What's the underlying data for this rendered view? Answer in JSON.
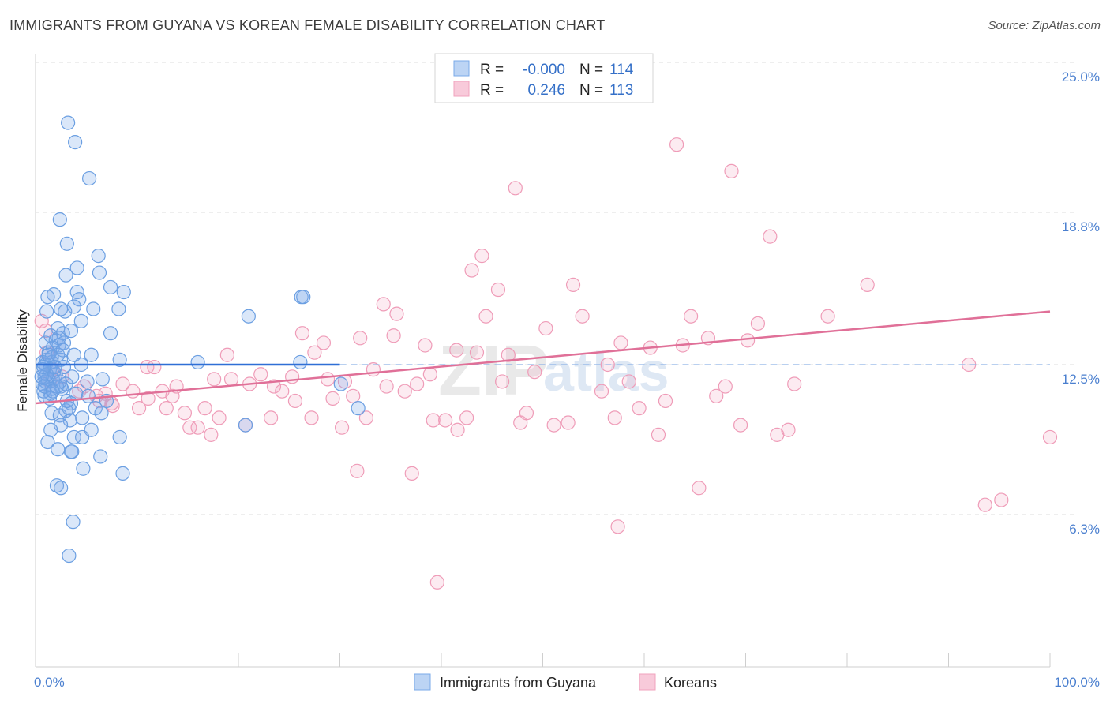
{
  "title": "IMMIGRANTS FROM GUYANA VS KOREAN FEMALE DISABILITY CORRELATION CHART",
  "source": "Source: ZipAtlas.com",
  "watermark": {
    "zip": "ZIP",
    "atlas": "atlas"
  },
  "colors": {
    "blue": "#7aaae8",
    "blue_line": "#2f6fd6",
    "pink": "#f1a3bd",
    "pink_line": "#e07098"
  },
  "legend": {
    "rows": [
      {
        "r_label": "R =",
        "r_value": "-0.000",
        "n_label": "N =",
        "n_value": "114"
      },
      {
        "r_label": "R =",
        "r_value": "0.246",
        "n_label": "N =",
        "n_value": "113"
      }
    ]
  },
  "bottom_legend": {
    "series1": "Immigrants from Guyana",
    "series2": "Koreans"
  },
  "chart_data": {
    "type": "scatter",
    "ylabel": "Female Disability",
    "xlabel": "",
    "xlim": [
      0,
      100
    ],
    "ylim": [
      0,
      25
    ],
    "y_ticks": [
      {
        "value": 6.3,
        "label": "6.3%"
      },
      {
        "value": 12.5,
        "label": "12.5%"
      },
      {
        "value": 18.8,
        "label": "18.8%"
      },
      {
        "value": 25.0,
        "label": "25.0%"
      }
    ],
    "x_tick_labels": {
      "min": "0.0%",
      "max": "100.0%"
    },
    "grid": true,
    "series": [
      {
        "name": "Immigrants from Guyana",
        "r": -0.0,
        "n": 114,
        "trend": {
          "x": [
            0,
            30
          ],
          "y": [
            12.5,
            12.5
          ],
          "dashed_extension_to": 100
        },
        "points": [
          [
            3.2,
            22.5
          ],
          [
            3.9,
            21.7
          ],
          [
            5.3,
            20.2
          ],
          [
            2.4,
            18.5
          ],
          [
            3.1,
            17.5
          ],
          [
            6.2,
            17.0
          ],
          [
            4.1,
            16.5
          ],
          [
            3.0,
            16.2
          ],
          [
            6.3,
            16.3
          ],
          [
            7.4,
            15.7
          ],
          [
            8.7,
            15.5
          ],
          [
            1.8,
            15.4
          ],
          [
            1.2,
            15.3
          ],
          [
            4.1,
            15.5
          ],
          [
            4.3,
            15.2
          ],
          [
            21.0,
            14.5
          ],
          [
            3.8,
            14.9
          ],
          [
            1.1,
            14.7
          ],
          [
            2.9,
            14.7
          ],
          [
            2.5,
            14.8
          ],
          [
            5.7,
            14.8
          ],
          [
            8.2,
            14.8
          ],
          [
            4.5,
            14.3
          ],
          [
            2.2,
            14.0
          ],
          [
            7.4,
            13.8
          ],
          [
            3.5,
            13.9
          ],
          [
            1.0,
            13.4
          ],
          [
            2.7,
            13.8
          ],
          [
            1.5,
            13.7
          ],
          [
            2.3,
            13.6
          ],
          [
            2.0,
            13.5
          ],
          [
            2.3,
            13.3
          ],
          [
            2.8,
            13.4
          ],
          [
            1.7,
            13.2
          ],
          [
            1.3,
            13.0
          ],
          [
            3.8,
            12.9
          ],
          [
            5.5,
            12.9
          ],
          [
            1.1,
            12.7
          ],
          [
            2.5,
            12.7
          ],
          [
            1.6,
            12.8
          ],
          [
            0.7,
            12.6
          ],
          [
            1.6,
            12.6
          ],
          [
            1.0,
            12.5
          ],
          [
            4.5,
            12.5
          ],
          [
            8.3,
            12.7
          ],
          [
            16.0,
            12.6
          ],
          [
            0.7,
            12.3
          ],
          [
            1.4,
            12.3
          ],
          [
            1.8,
            12.2
          ],
          [
            2.0,
            12.1
          ],
          [
            0.9,
            12.0
          ],
          [
            1.2,
            11.9
          ],
          [
            1.7,
            11.9
          ],
          [
            6.6,
            11.9
          ],
          [
            1.0,
            11.8
          ],
          [
            0.7,
            11.7
          ],
          [
            2.5,
            11.6
          ],
          [
            3.0,
            11.7
          ],
          [
            5.1,
            11.8
          ],
          [
            1.6,
            11.5
          ],
          [
            2.6,
            11.5
          ],
          [
            1.5,
            11.3
          ],
          [
            0.9,
            11.2
          ],
          [
            4.0,
            11.3
          ],
          [
            5.2,
            11.2
          ],
          [
            7.0,
            11.0
          ],
          [
            3.5,
            10.9
          ],
          [
            5.9,
            10.7
          ],
          [
            3.0,
            10.6
          ],
          [
            1.6,
            10.5
          ],
          [
            2.4,
            10.4
          ],
          [
            3.3,
            10.7
          ],
          [
            6.5,
            10.5
          ],
          [
            4.6,
            10.3
          ],
          [
            3.4,
            10.2
          ],
          [
            2.5,
            10.0
          ],
          [
            5.5,
            9.8
          ],
          [
            1.5,
            9.8
          ],
          [
            3.8,
            9.5
          ],
          [
            4.6,
            9.5
          ],
          [
            8.3,
            9.5
          ],
          [
            1.2,
            9.3
          ],
          [
            2.2,
            9.0
          ],
          [
            3.5,
            8.9
          ],
          [
            3.6,
            8.9
          ],
          [
            6.4,
            8.7
          ],
          [
            4.7,
            8.2
          ],
          [
            8.6,
            8.0
          ],
          [
            2.1,
            7.5
          ],
          [
            2.5,
            7.4
          ],
          [
            3.7,
            6.0
          ],
          [
            3.3,
            4.6
          ],
          [
            20.7,
            10.0
          ],
          [
            26.1,
            12.6
          ],
          [
            30.1,
            11.7
          ],
          [
            26.2,
            15.3
          ],
          [
            26.4,
            15.3
          ],
          [
            31.8,
            10.7
          ],
          [
            1.1,
            12.1
          ],
          [
            0.8,
            11.4
          ],
          [
            1.3,
            12.9
          ],
          [
            2.1,
            11.6
          ],
          [
            2.8,
            12.4
          ],
          [
            0.6,
            12.0
          ],
          [
            1.9,
            12.4
          ],
          [
            1.4,
            11.1
          ],
          [
            3.6,
            12.0
          ],
          [
            2.2,
            12.9
          ],
          [
            0.9,
            11.6
          ],
          [
            2.4,
            11.8
          ],
          [
            1.7,
            11.4
          ],
          [
            0.8,
            12.4
          ],
          [
            3.1,
            11.0
          ],
          [
            2.7,
            13.1
          ]
        ]
      },
      {
        "name": "Koreans",
        "r": 0.246,
        "n": 113,
        "trend": {
          "x": [
            0,
            100
          ],
          "y": [
            10.9,
            14.7
          ]
        },
        "points": [
          [
            0.6,
            14.3
          ],
          [
            1.0,
            13.9
          ],
          [
            1.1,
            13.0
          ],
          [
            1.7,
            12.3
          ],
          [
            2.6,
            12.0
          ],
          [
            1.4,
            11.8
          ],
          [
            4.8,
            11.6
          ],
          [
            4.3,
            11.4
          ],
          [
            6.0,
            11.2
          ],
          [
            6.3,
            11.0
          ],
          [
            7.5,
            10.9
          ],
          [
            8.6,
            11.7
          ],
          [
            6.9,
            11.3
          ],
          [
            7.6,
            10.8
          ],
          [
            9.6,
            11.4
          ],
          [
            10.2,
            10.7
          ],
          [
            11.1,
            11.1
          ],
          [
            11.7,
            12.4
          ],
          [
            11.0,
            12.4
          ],
          [
            12.5,
            11.4
          ],
          [
            12.9,
            10.7
          ],
          [
            13.9,
            11.6
          ],
          [
            13.5,
            11.2
          ],
          [
            14.7,
            10.5
          ],
          [
            15.2,
            9.9
          ],
          [
            16.0,
            9.9
          ],
          [
            16.7,
            10.7
          ],
          [
            17.3,
            9.6
          ],
          [
            17.6,
            11.9
          ],
          [
            18.1,
            10.3
          ],
          [
            18.9,
            12.9
          ],
          [
            19.3,
            11.9
          ],
          [
            20.7,
            10.0
          ],
          [
            21.1,
            11.7
          ],
          [
            22.2,
            12.1
          ],
          [
            23.2,
            10.3
          ],
          [
            23.5,
            11.6
          ],
          [
            24.3,
            11.4
          ],
          [
            25.3,
            12.0
          ],
          [
            25.6,
            11.0
          ],
          [
            26.3,
            13.8
          ],
          [
            27.2,
            10.3
          ],
          [
            27.5,
            13.0
          ],
          [
            28.4,
            13.4
          ],
          [
            28.8,
            11.9
          ],
          [
            29.3,
            11.1
          ],
          [
            30.2,
            9.9
          ],
          [
            30.5,
            11.8
          ],
          [
            31.3,
            11.2
          ],
          [
            31.7,
            8.1
          ],
          [
            32.0,
            13.6
          ],
          [
            32.6,
            10.3
          ],
          [
            33.3,
            12.3
          ],
          [
            34.3,
            15.0
          ],
          [
            34.6,
            11.6
          ],
          [
            35.3,
            13.7
          ],
          [
            35.6,
            14.6
          ],
          [
            36.4,
            11.4
          ],
          [
            37.1,
            8.0
          ],
          [
            37.6,
            11.7
          ],
          [
            38.4,
            13.3
          ],
          [
            38.9,
            12.1
          ],
          [
            39.2,
            10.2
          ],
          [
            39.6,
            3.5
          ],
          [
            40.4,
            10.2
          ],
          [
            41.5,
            13.1
          ],
          [
            41.6,
            9.8
          ],
          [
            42.5,
            10.3
          ],
          [
            43.0,
            16.4
          ],
          [
            43.5,
            13.0
          ],
          [
            44.0,
            17.0
          ],
          [
            44.4,
            14.5
          ],
          [
            45.6,
            15.6
          ],
          [
            46.0,
            11.8
          ],
          [
            46.6,
            12.9
          ],
          [
            47.3,
            19.8
          ],
          [
            47.8,
            10.1
          ],
          [
            48.4,
            10.5
          ],
          [
            49.2,
            12.2
          ],
          [
            50.3,
            14.0
          ],
          [
            51.1,
            10.0
          ],
          [
            52.5,
            10.1
          ],
          [
            53.0,
            15.8
          ],
          [
            53.9,
            14.5
          ],
          [
            55.8,
            11.4
          ],
          [
            56.4,
            12.5
          ],
          [
            57.1,
            10.3
          ],
          [
            57.4,
            5.8
          ],
          [
            57.7,
            13.4
          ],
          [
            58.5,
            11.8
          ],
          [
            59.5,
            10.7
          ],
          [
            60.6,
            13.2
          ],
          [
            61.4,
            9.6
          ],
          [
            62.1,
            11.0
          ],
          [
            63.2,
            21.6
          ],
          [
            63.8,
            13.3
          ],
          [
            64.6,
            14.5
          ],
          [
            65.4,
            7.4
          ],
          [
            66.3,
            13.6
          ],
          [
            67.1,
            11.2
          ],
          [
            68.0,
            11.6
          ],
          [
            68.6,
            20.5
          ],
          [
            69.5,
            10.0
          ],
          [
            70.2,
            13.5
          ],
          [
            71.2,
            14.2
          ],
          [
            72.4,
            17.8
          ],
          [
            73.1,
            9.6
          ],
          [
            74.2,
            9.8
          ],
          [
            74.8,
            11.7
          ],
          [
            78.1,
            14.5
          ],
          [
            82.0,
            15.8
          ],
          [
            92.0,
            12.5
          ],
          [
            93.6,
            6.7
          ],
          [
            95.2,
            6.9
          ],
          [
            100.0,
            9.5
          ]
        ]
      }
    ]
  }
}
